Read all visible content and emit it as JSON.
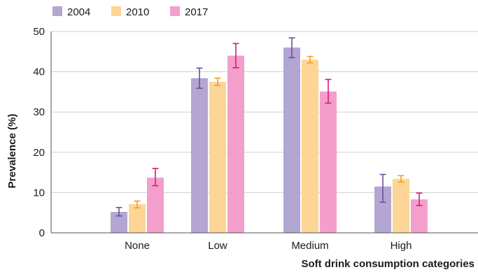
{
  "chart_data": {
    "type": "bar",
    "title": "",
    "xlabel": "Soft drink consumption categories",
    "ylabel": "Prevalence (%)",
    "ylim": [
      0,
      50
    ],
    "yticks": [
      0,
      10,
      20,
      30,
      40,
      50
    ],
    "categories": [
      "None",
      "Low",
      "Medium",
      "High"
    ],
    "grid": true,
    "legend_position": "top-left",
    "series": [
      {
        "name": "2004",
        "color": "#b3a6d2",
        "error_color": "#6b4f9a",
        "values": [
          5.2,
          38.4,
          46.0,
          11.5
        ],
        "err_low": [
          4.2,
          35.9,
          43.5,
          7.6
        ],
        "err_high": [
          6.3,
          40.9,
          48.4,
          14.5
        ]
      },
      {
        "name": "2010",
        "color": "#fdd596",
        "error_color": "#f0a11d",
        "values": [
          7.1,
          37.5,
          43.0,
          13.4
        ],
        "err_low": [
          6.2,
          36.6,
          42.2,
          12.6
        ],
        "err_high": [
          7.9,
          38.4,
          43.8,
          14.2
        ]
      },
      {
        "name": "2017",
        "color": "#f49fcb",
        "error_color": "#d6197a",
        "values": [
          13.7,
          44.0,
          35.1,
          8.3
        ],
        "err_low": [
          11.7,
          41.0,
          32.2,
          6.8
        ],
        "err_high": [
          16.0,
          47.0,
          38.1,
          9.9
        ]
      }
    ]
  }
}
